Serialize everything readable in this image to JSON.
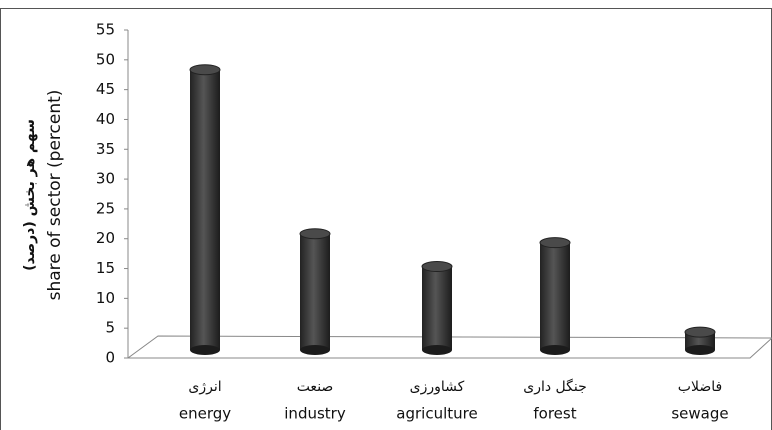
{
  "chart_data": {
    "type": "bar3d",
    "y_label": [
      "سهم هر بخش (درصد)",
      "share of sector (percent)"
    ],
    "categories": [
      "energy",
      "industry",
      "agriculture",
      "forest",
      "sewage"
    ],
    "categories_fa": [
      "انرژی",
      "صنعت",
      "کشاورزی",
      "جنگل داری",
      "فاضلاب"
    ],
    "values": [
      47,
      19.5,
      14,
      18,
      3
    ],
    "color": "#3a3a3a",
    "ylim": [
      0,
      55
    ],
    "yticks": [
      0,
      5,
      10,
      15,
      20,
      25,
      30,
      35,
      40,
      45,
      50,
      55
    ]
  }
}
